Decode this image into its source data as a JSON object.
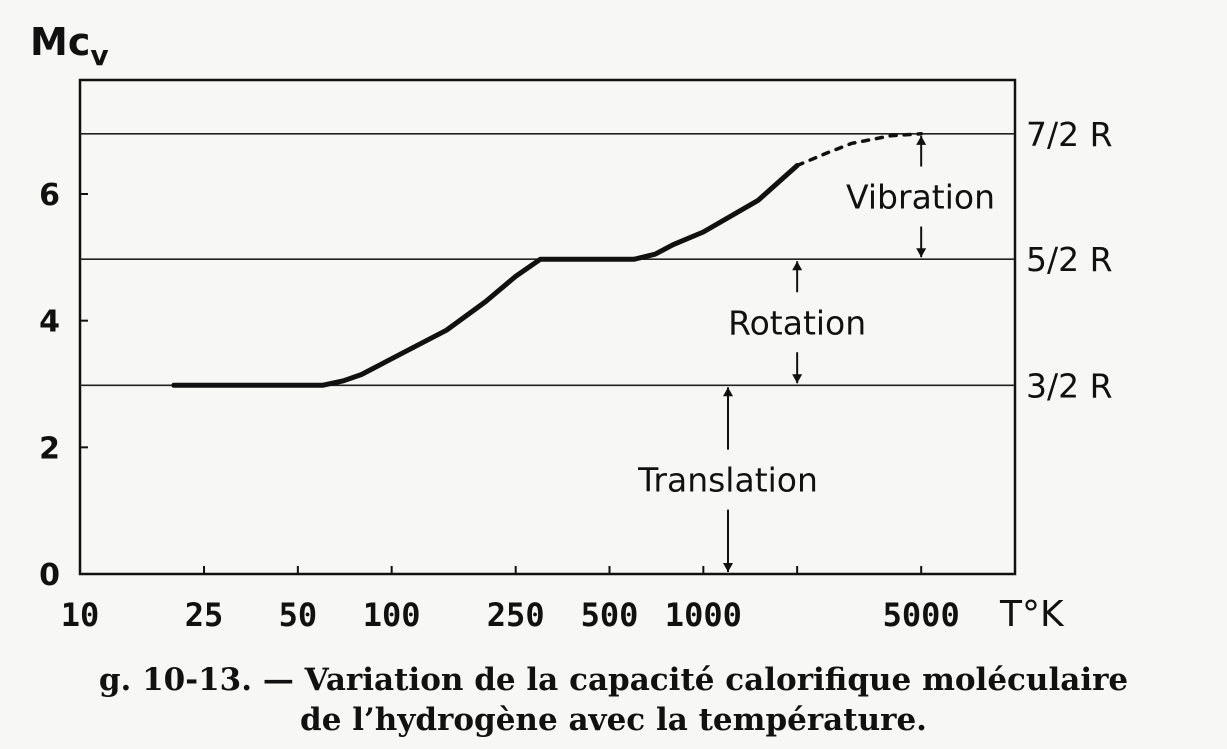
{
  "chart_data": {
    "type": "line",
    "ylabel": "Mc",
    "ylabel_sub": "v",
    "xlabel": "T°K",
    "x_scale": "log",
    "xlim": [
      10,
      10000
    ],
    "ylim": [
      0,
      7.8
    ],
    "y_ticks": [
      0,
      2,
      4,
      6
    ],
    "y_tick_labels": [
      "0",
      "2",
      "4",
      "6"
    ],
    "x_ticks": [
      10,
      25,
      50,
      100,
      250,
      500,
      1000,
      5000
    ],
    "x_tick_labels": [
      "10",
      "25",
      "50",
      "100",
      "250",
      "500",
      "1000",
      "5000"
    ],
    "x_minor_ticks": [
      2000
    ],
    "grid": false,
    "levels": [
      {
        "y": 6.95,
        "label": "7/2 R"
      },
      {
        "y": 4.97,
        "label": "5/2 R"
      },
      {
        "y": 2.98,
        "label": "3/2 R"
      }
    ],
    "series": [
      {
        "style": "solid",
        "x": [
          20,
          30,
          45,
          60,
          70,
          80,
          100,
          150,
          200,
          250,
          300,
          400,
          500,
          600,
          700,
          800,
          1000,
          1500,
          2000
        ],
        "y": [
          2.98,
          2.98,
          2.98,
          2.98,
          3.05,
          3.15,
          3.4,
          3.85,
          4.3,
          4.7,
          4.97,
          4.97,
          4.97,
          4.97,
          5.05,
          5.2,
          5.4,
          5.9,
          6.45
        ]
      },
      {
        "style": "dashed",
        "x": [
          2000,
          2500,
          3000,
          4000,
          5000
        ],
        "y": [
          6.45,
          6.65,
          6.8,
          6.92,
          6.95
        ]
      }
    ],
    "annotations": [
      {
        "text": "Vibration",
        "arrow_x": 5000,
        "y_from": 4.97,
        "y_to": 6.95
      },
      {
        "text": "Rotation",
        "arrow_x": 2000,
        "y_from": 2.98,
        "y_to": 4.97
      },
      {
        "text": "Translation",
        "arrow_x": 1200,
        "y_from": 0,
        "y_to": 2.98
      }
    ]
  },
  "caption": {
    "line1": "g. 10-13. — Variation de la capacité calorifique moléculaire",
    "line2": "de l’hydrogène avec la température."
  }
}
